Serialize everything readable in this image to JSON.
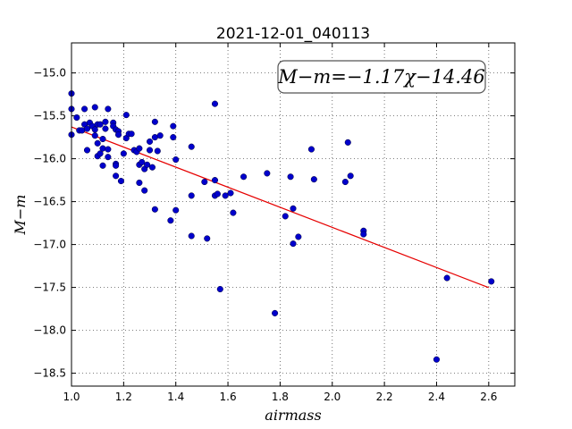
{
  "chart_data": {
    "type": "scatter",
    "title": "2021-12-01_040113",
    "xlabel": "airmass",
    "ylabel": "M−m",
    "annotation": "M−m=−1.17χ−14.46",
    "xlim": [
      1.0,
      2.7
    ],
    "ylim": [
      -18.65,
      -14.65
    ],
    "xticks": [
      1.0,
      1.2,
      1.4,
      1.6,
      1.8,
      2.0,
      2.2,
      2.4,
      2.6
    ],
    "xtick_labels": [
      "1.0",
      "1.2",
      "1.4",
      "1.6",
      "1.8",
      "2.0",
      "2.2",
      "2.4",
      "2.6"
    ],
    "yticks": [
      -15.0,
      -15.5,
      -16.0,
      -16.5,
      -17.0,
      -17.5,
      -18.0,
      -18.5
    ],
    "ytick_labels": [
      "−15.0",
      "−15.5",
      "−16.0",
      "−16.5",
      "−17.0",
      "−17.5",
      "−18.0",
      "−18.5"
    ],
    "grid": true,
    "point_color": "#0000cc",
    "fit_color": "#e60000",
    "fit": {
      "slope": -1.17,
      "intercept": -14.46,
      "x_range": [
        1.0,
        2.6
      ]
    },
    "points": [
      [
        1.0,
        -15.24
      ],
      [
        1.0,
        -15.42
      ],
      [
        1.0,
        -15.72
      ],
      [
        1.02,
        -15.52
      ],
      [
        1.03,
        -15.67
      ],
      [
        1.04,
        -15.67
      ],
      [
        1.05,
        -15.42
      ],
      [
        1.05,
        -15.6
      ],
      [
        1.06,
        -15.65
      ],
      [
        1.06,
        -15.9
      ],
      [
        1.07,
        -15.58
      ],
      [
        1.08,
        -15.62
      ],
      [
        1.09,
        -15.66
      ],
      [
        1.09,
        -15.73
      ],
      [
        1.09,
        -15.4
      ],
      [
        1.1,
        -15.6
      ],
      [
        1.1,
        -15.82
      ],
      [
        1.1,
        -15.97
      ],
      [
        1.11,
        -15.6
      ],
      [
        1.11,
        -15.94
      ],
      [
        1.12,
        -15.77
      ],
      [
        1.12,
        -15.88
      ],
      [
        1.12,
        -16.08
      ],
      [
        1.13,
        -15.57
      ],
      [
        1.13,
        -15.65
      ],
      [
        1.14,
        -15.89
      ],
      [
        1.14,
        -15.98
      ],
      [
        1.14,
        -15.42
      ],
      [
        1.16,
        -15.58
      ],
      [
        1.16,
        -15.62
      ],
      [
        1.17,
        -15.66
      ],
      [
        1.17,
        -16.06
      ],
      [
        1.17,
        -16.08
      ],
      [
        1.17,
        -16.2
      ],
      [
        1.18,
        -15.68
      ],
      [
        1.18,
        -15.72
      ],
      [
        1.19,
        -16.26
      ],
      [
        1.2,
        -15.94
      ],
      [
        1.21,
        -15.49
      ],
      [
        1.21,
        -15.76
      ],
      [
        1.22,
        -15.71
      ],
      [
        1.23,
        -15.71
      ],
      [
        1.24,
        -15.9
      ],
      [
        1.25,
        -15.92
      ],
      [
        1.26,
        -16.07
      ],
      [
        1.26,
        -15.88
      ],
      [
        1.26,
        -16.28
      ],
      [
        1.27,
        -16.04
      ],
      [
        1.28,
        -16.12
      ],
      [
        1.28,
        -16.37
      ],
      [
        1.29,
        -16.07
      ],
      [
        1.3,
        -15.9
      ],
      [
        1.3,
        -15.8
      ],
      [
        1.31,
        -16.1
      ],
      [
        1.32,
        -15.57
      ],
      [
        1.32,
        -15.75
      ],
      [
        1.32,
        -16.59
      ],
      [
        1.33,
        -15.91
      ],
      [
        1.34,
        -15.73
      ],
      [
        1.38,
        -16.72
      ],
      [
        1.39,
        -15.62
      ],
      [
        1.39,
        -15.75
      ],
      [
        1.4,
        -16.01
      ],
      [
        1.4,
        -16.6
      ],
      [
        1.46,
        -15.86
      ],
      [
        1.46,
        -16.43
      ],
      [
        1.46,
        -16.9
      ],
      [
        1.51,
        -16.27
      ],
      [
        1.52,
        -16.93
      ],
      [
        1.55,
        -15.36
      ],
      [
        1.55,
        -16.25
      ],
      [
        1.55,
        -16.43
      ],
      [
        1.56,
        -16.41
      ],
      [
        1.57,
        -17.52
      ],
      [
        1.59,
        -16.43
      ],
      [
        1.61,
        -16.4
      ],
      [
        1.62,
        -16.63
      ],
      [
        1.66,
        -16.21
      ],
      [
        1.75,
        -16.17
      ],
      [
        1.78,
        -17.8
      ],
      [
        1.82,
        -16.67
      ],
      [
        1.84,
        -16.21
      ],
      [
        1.85,
        -16.99
      ],
      [
        1.85,
        -16.58
      ],
      [
        1.87,
        -16.91
      ],
      [
        1.92,
        -15.89
      ],
      [
        1.93,
        -16.24
      ],
      [
        2.05,
        -16.27
      ],
      [
        2.06,
        -15.81
      ],
      [
        2.07,
        -16.2
      ],
      [
        2.12,
        -16.84
      ],
      [
        2.12,
        -16.88
      ],
      [
        2.4,
        -18.34
      ],
      [
        2.44,
        -17.39
      ],
      [
        2.61,
        -17.43
      ]
    ]
  }
}
